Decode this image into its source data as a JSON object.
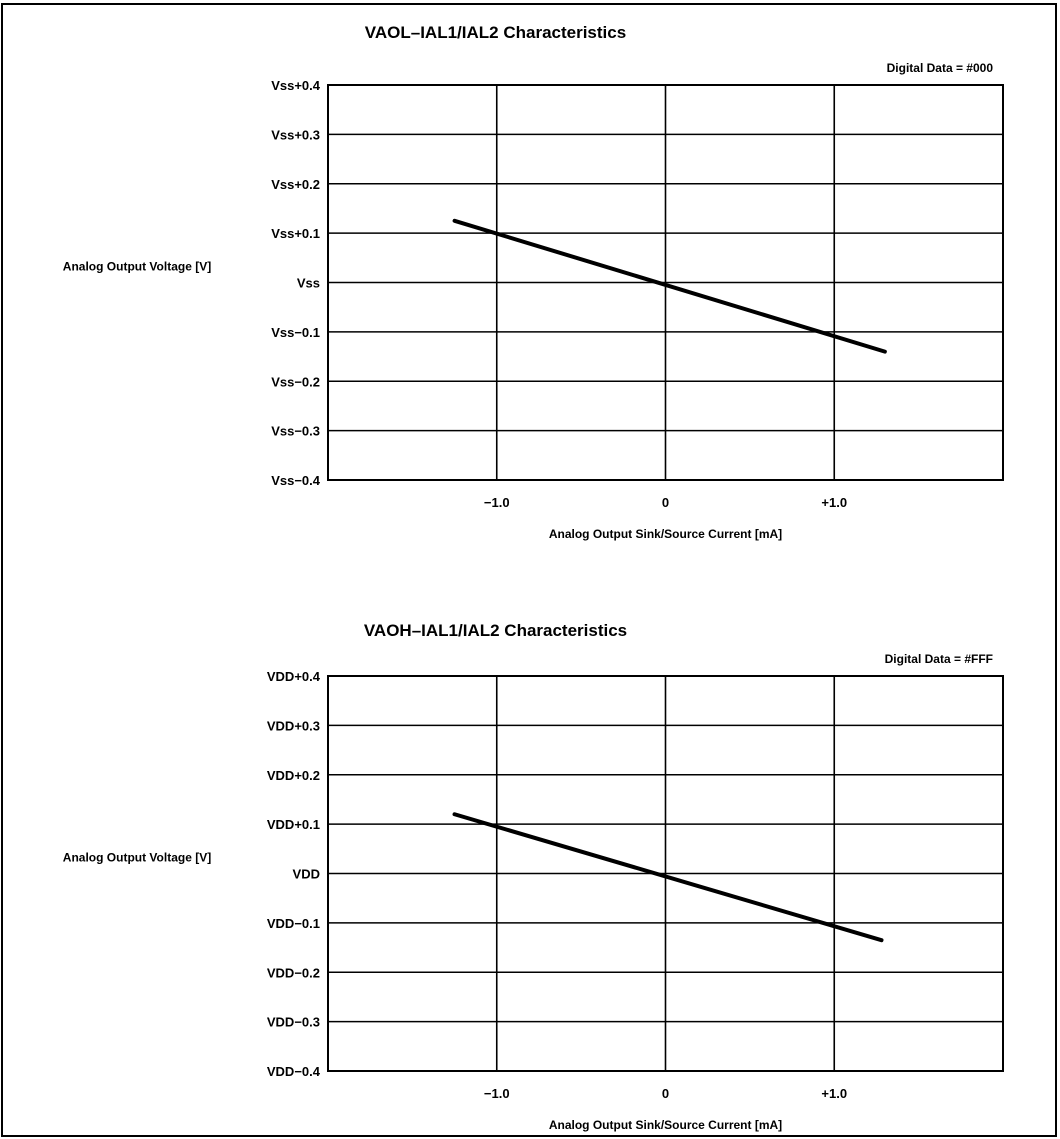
{
  "chart_data": [
    {
      "type": "line",
      "title": "VAOL–IAL1/IAL2 Characteristics",
      "note": "Digital Data = #000",
      "xlabel": "Analog Output Sink/Source Current  [mA]",
      "ylabel": "Analog Output Voltage [V]",
      "xlim": [
        -2.0,
        2.0
      ],
      "ylim": [
        -0.4,
        0.4
      ],
      "x_ticks": [
        -1.0,
        0,
        1.0
      ],
      "x_tick_labels": [
        "−1.0",
        "0",
        "+1.0"
      ],
      "y_ticks": [
        0.4,
        0.3,
        0.2,
        0.1,
        0,
        -0.1,
        -0.2,
        -0.3,
        -0.4
      ],
      "y_tick_labels": [
        "Vss+0.4",
        "Vss+0.3",
        "Vss+0.2",
        "Vss+0.1",
        "Vss",
        "Vss−0.1",
        "Vss−0.2",
        "Vss−0.3",
        "Vss−0.4"
      ],
      "grid": true,
      "series": [
        {
          "x": [
            -1.25,
            1.3
          ],
          "y": [
            0.125,
            -0.14
          ]
        }
      ]
    },
    {
      "type": "line",
      "title": "VAOH–IAL1/IAL2 Characteristics",
      "note": "Digital Data = #FFF",
      "xlabel": "Analog Output Sink/Source Current  [mA]",
      "ylabel": "Analog Output Voltage [V]",
      "xlim": [
        -2.0,
        2.0
      ],
      "ylim": [
        -0.4,
        0.4
      ],
      "x_ticks": [
        -1.0,
        0,
        1.0
      ],
      "x_tick_labels": [
        "−1.0",
        "0",
        "+1.0"
      ],
      "y_ticks": [
        0.4,
        0.3,
        0.2,
        0.1,
        0,
        -0.1,
        -0.2,
        -0.3,
        -0.4
      ],
      "y_tick_labels": [
        "VDD+0.4",
        "VDD+0.3",
        "VDD+0.2",
        "VDD+0.1",
        "VDD",
        "VDD−0.1",
        "VDD−0.2",
        "VDD−0.3",
        "VDD−0.4"
      ],
      "grid": true,
      "series": [
        {
          "x": [
            -1.25,
            1.28
          ],
          "y": [
            0.12,
            -0.135
          ]
        }
      ]
    }
  ]
}
